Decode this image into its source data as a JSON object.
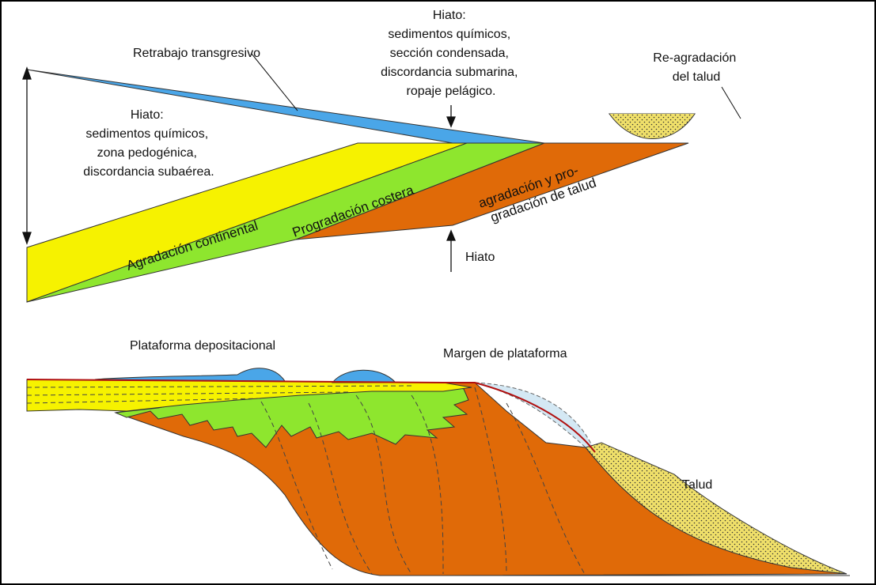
{
  "colors": {
    "yellow": "#f6f200",
    "green": "#8ee62e",
    "orange": "#e06a08",
    "blue": "#4aa6e8",
    "light_blue": "#d4e8f4",
    "sand": "#f0e06a",
    "red_line": "#b01010"
  },
  "top": {
    "retrabajo": "Retrabajo transgresivo",
    "hiato_top": [
      "Hiato:",
      "sedimentos químicos,",
      "sección condensada,",
      "discordancia submarina,",
      "ropaje pelágico."
    ],
    "reagradacion": [
      "Re-agradación",
      "del talud"
    ],
    "hiato_left": [
      "Hiato:",
      "sedimentos químicos,",
      "zona pedogénica,",
      "discordancia subaérea."
    ],
    "agradacion_continental": "Agradación continental",
    "progradacion_costera": "Progradación costera",
    "agradacion_talud": [
      "agradación y pro-",
      "gradación de talud"
    ],
    "hiato_bottom": "Hiato"
  },
  "bottom": {
    "plataforma_depositacional": "Plataforma depositacional",
    "margen_plataforma": "Margen de plataforma",
    "talud": "Talud"
  }
}
